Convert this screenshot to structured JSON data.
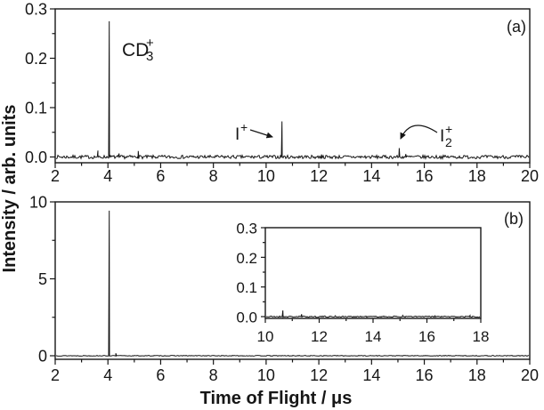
{
  "figure": {
    "xlabel": "Time of Flight / μs",
    "ylabel": "Intensity / arb. units",
    "panel_a_tag": "(a)",
    "panel_b_tag": "(b)"
  },
  "annotations": {
    "cd3": {
      "base": "CD",
      "sub": "3",
      "sup": "+"
    },
    "iplus": {
      "base": "I",
      "sup": "+"
    },
    "i2plus": {
      "base": "I",
      "sub": "2",
      "sup": "+"
    }
  },
  "chart_data": [
    {
      "id": "panel_a",
      "type": "line",
      "title": "TOF mass spectrum, panel (a)",
      "tag": "(a)",
      "xlim": [
        2,
        20
      ],
      "ylim": [
        -0.012,
        0.3
      ],
      "x_major_ticks": [
        2,
        4,
        6,
        8,
        10,
        12,
        14,
        16,
        18,
        20
      ],
      "x_tick_labels": [
        "2",
        "4",
        "6",
        "8",
        "10",
        "12",
        "14",
        "16",
        "18",
        "20"
      ],
      "x_minor_step": 1,
      "y_major_ticks": [
        0.0,
        0.1,
        0.2,
        0.3
      ],
      "y_tick_labels": [
        "0.0",
        "0.1",
        "0.2",
        "0.3"
      ],
      "y_minor_step": 0.05,
      "baseline": 0.0,
      "noise_amplitude": 0.0035,
      "grid": false,
      "peaks": [
        {
          "x": 4.05,
          "y": 0.275,
          "label": "CD3+"
        },
        {
          "x": 10.6,
          "y": 0.072,
          "label": "I+"
        },
        {
          "x": 15.05,
          "y": 0.018,
          "label": "I2+"
        },
        {
          "x": 3.62,
          "y": 0.013
        },
        {
          "x": 4.42,
          "y": 0.007
        },
        {
          "x": 5.15,
          "y": 0.012
        },
        {
          "x": 12.1,
          "y": 0.005
        },
        {
          "x": 15.3,
          "y": 0.006
        }
      ]
    },
    {
      "id": "panel_b",
      "type": "line",
      "title": "TOF mass spectrum, panel (b)",
      "tag": "(b)",
      "xlim": [
        2,
        20
      ],
      "ylim": [
        -0.23,
        10
      ],
      "x_major_ticks": [
        2,
        4,
        6,
        8,
        10,
        12,
        14,
        16,
        18,
        20
      ],
      "x_tick_labels": [
        "2",
        "4",
        "6",
        "8",
        "10",
        "12",
        "14",
        "16",
        "18",
        "20"
      ],
      "x_minor_step": 1,
      "y_major_ticks": [
        0,
        5,
        10
      ],
      "y_tick_labels": [
        "0",
        "5",
        "10"
      ],
      "y_minor_step": 2.5,
      "baseline": 0.0,
      "noise_amplitude": 0.025,
      "grid": false,
      "peaks": [
        {
          "x": 4.05,
          "y": 9.43,
          "label": "CD3+"
        },
        {
          "x": 4.3,
          "y": 0.16
        }
      ]
    },
    {
      "id": "inset",
      "type": "line",
      "title": "Inset: magnified 10–18 μs region of panel (b)",
      "xlim": [
        10,
        18
      ],
      "ylim": [
        -0.006,
        0.3
      ],
      "x_major_ticks": [
        10,
        12,
        14,
        16,
        18
      ],
      "x_tick_labels": [
        "10",
        "12",
        "14",
        "16",
        "18"
      ],
      "x_minor_step": 1,
      "y_major_ticks": [
        0.0,
        0.1,
        0.2,
        0.3
      ],
      "y_tick_labels": [
        "0.0",
        "0.1",
        "0.2",
        "0.3"
      ],
      "y_minor_step": 0.05,
      "baseline": 0.0,
      "noise_amplitude": 0.0022,
      "grid": false,
      "peaks": [
        {
          "x": 10.65,
          "y": 0.021
        },
        {
          "x": 11.35,
          "y": 0.008
        },
        {
          "x": 12.6,
          "y": 0.003
        },
        {
          "x": 15.1,
          "y": 0.004
        },
        {
          "x": 16.3,
          "y": 0.003
        },
        {
          "x": 17.6,
          "y": 0.004
        }
      ]
    }
  ]
}
